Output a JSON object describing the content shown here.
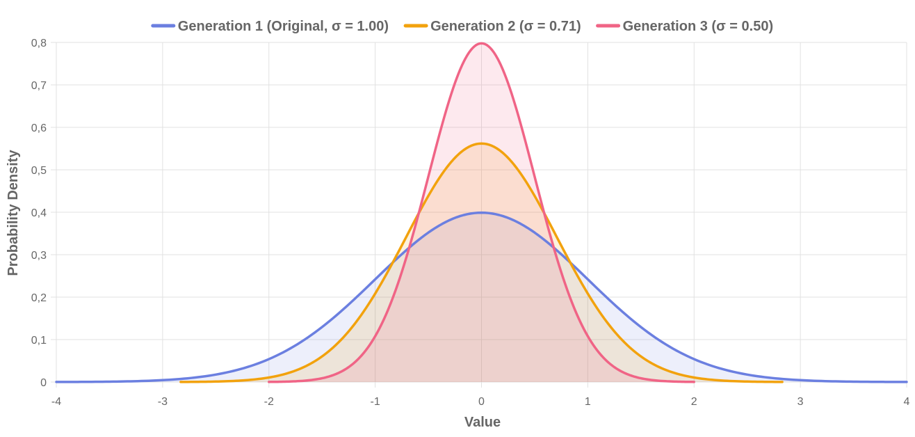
{
  "chart_data": {
    "type": "area",
    "xlabel": "Value",
    "ylabel": "Probability Density",
    "xlim": [
      -4,
      4
    ],
    "ylim": [
      0,
      0.8
    ],
    "x_ticks": [
      "-4",
      "-3",
      "-2",
      "-1",
      "0",
      "1",
      "2",
      "3",
      "4"
    ],
    "y_ticks": [
      "0",
      "0,1",
      "0,2",
      "0,3",
      "0,4",
      "0,5",
      "0,6",
      "0,7",
      "0,8"
    ],
    "grid": true,
    "legend_position": "top",
    "series": [
      {
        "name": "Generation 1 (Original, σ = 1.00)",
        "color": "#6b7fe0",
        "fill": "rgba(107,127,224,0.12)",
        "mean": 0,
        "sigma": 1.0,
        "x_range": [
          -4,
          4
        ],
        "points": [
          [
            -4,
            0.0001
          ],
          [
            -3.5,
            0.0009
          ],
          [
            -3,
            0.0044
          ],
          [
            -2.5,
            0.0175
          ],
          [
            -2,
            0.054
          ],
          [
            -1.5,
            0.1295
          ],
          [
            -1,
            0.242
          ],
          [
            -0.5,
            0.3521
          ],
          [
            0,
            0.3989
          ],
          [
            0.5,
            0.3521
          ],
          [
            1,
            0.242
          ],
          [
            1.5,
            0.1295
          ],
          [
            2,
            0.054
          ],
          [
            2.5,
            0.0175
          ],
          [
            3,
            0.0044
          ],
          [
            3.5,
            0.0009
          ],
          [
            4,
            0.0001
          ]
        ]
      },
      {
        "name": "Generation 2 (σ = 0.71)",
        "color": "#f2a20d",
        "fill": "rgba(242,162,13,0.14)",
        "mean": 0,
        "sigma": 0.71,
        "x_range": [
          -2.83,
          2.83
        ],
        "points": [
          [
            -2.83,
            0.0002
          ],
          [
            -2.5,
            0.0011
          ],
          [
            -2,
            0.0105
          ],
          [
            -1.5,
            0.0604
          ],
          [
            -1,
            0.2071
          ],
          [
            -0.5,
            0.4401
          ],
          [
            0,
            0.5619
          ],
          [
            0.5,
            0.4401
          ],
          [
            1,
            0.2071
          ],
          [
            1.5,
            0.0604
          ],
          [
            2,
            0.0105
          ],
          [
            2.5,
            0.0011
          ],
          [
            2.83,
            0.0002
          ]
        ]
      },
      {
        "name": "Generation 3 (σ = 0.50)",
        "color": "#f06486",
        "fill": "rgba(240,100,134,0.14)",
        "mean": 0,
        "sigma": 0.5,
        "x_range": [
          -2,
          2
        ],
        "points": [
          [
            -2,
            0.0003
          ],
          [
            -1.5,
            0.0089
          ],
          [
            -1,
            0.108
          ],
          [
            -0.5,
            0.4839
          ],
          [
            0,
            0.7979
          ],
          [
            0.5,
            0.4839
          ],
          [
            1,
            0.108
          ],
          [
            1.5,
            0.0089
          ],
          [
            2,
            0.0003
          ]
        ]
      }
    ]
  }
}
